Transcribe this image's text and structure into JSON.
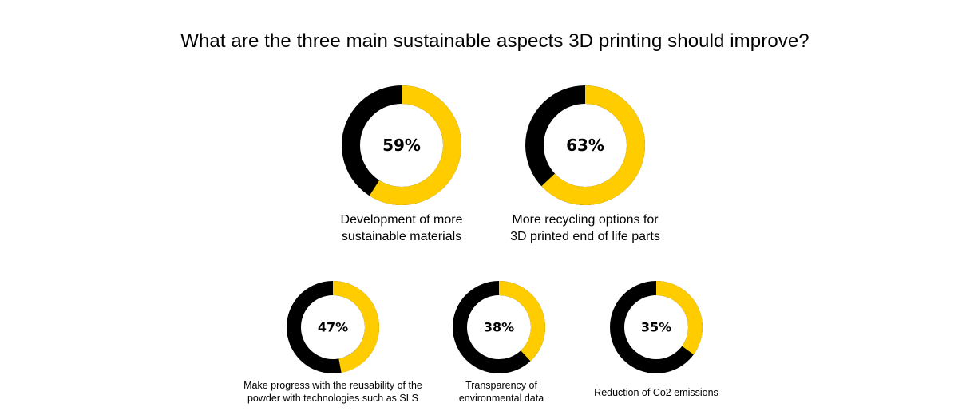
{
  "title": "What are the three main sustainable aspects 3D printing should improve?",
  "colors": {
    "filled": "#FFCC00",
    "remainder": "#000000",
    "background": "#FFFFFF"
  },
  "chart_data": [
    {
      "type": "pie",
      "value": 59,
      "label": "59%",
      "caption_lines": [
        "Development of more",
        "sustainable materials"
      ]
    },
    {
      "type": "pie",
      "value": 63,
      "label": "63%",
      "caption_lines": [
        "More recycling options for",
        "3D printed end of life parts"
      ]
    },
    {
      "type": "pie",
      "value": 47,
      "label": "47%",
      "caption_lines": [
        "Make progress with the reusability of the",
        "powder with technologies such as SLS"
      ]
    },
    {
      "type": "pie",
      "value": 38,
      "label": "38%",
      "caption_lines": [
        "Transparency of",
        "environmental data"
      ]
    },
    {
      "type": "pie",
      "value": 35,
      "label": "35%",
      "caption_lines": [
        "Reduction of Co2 emissions"
      ]
    }
  ]
}
